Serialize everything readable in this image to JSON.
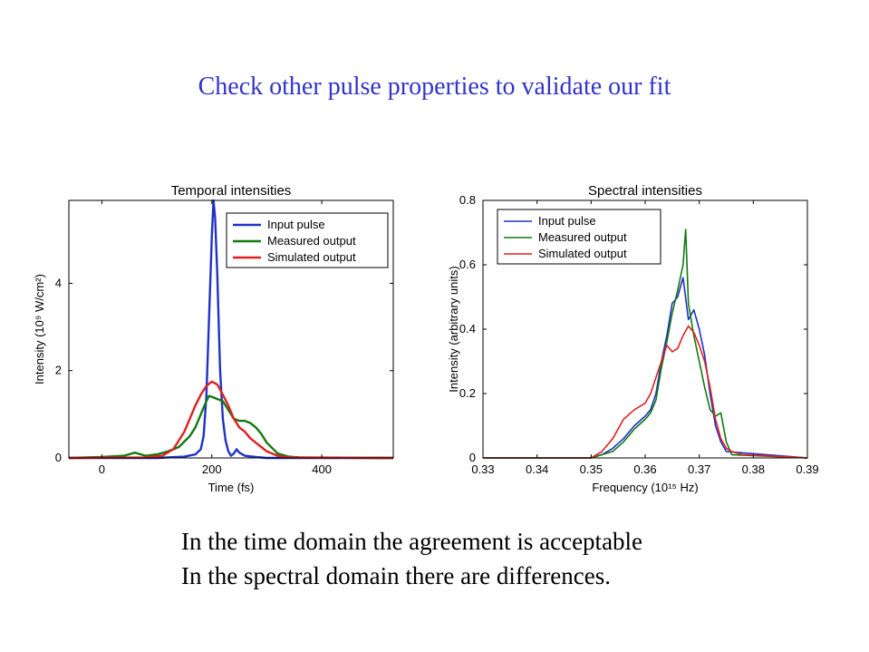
{
  "slide": {
    "title": "Check other pulse properties to validate our fit",
    "conclusions": [
      "In the time domain the agreement is acceptable",
      "In the spectral domain there are differences."
    ]
  },
  "colors": {
    "title": "#3333cc",
    "input": "#1f32c8",
    "measured": "#117a11",
    "simulated": "#e02020"
  },
  "chart_data": [
    {
      "type": "line",
      "title": "Temporal intensities",
      "xlabel": "Time (fs)",
      "ylabel": "Intensity (10⁹ W/cm²)",
      "xlim": [
        -60,
        530
      ],
      "ylim": [
        0,
        5.9
      ],
      "xticks": [
        0,
        200,
        400
      ],
      "yticks": [
        0,
        2,
        4
      ],
      "grid": false,
      "legend_position": "top-right",
      "series": [
        {
          "name": "Input pulse",
          "color": "#1f32c8",
          "x": [
            -60,
            100,
            150,
            170,
            180,
            185,
            190,
            195,
            200,
            203,
            206,
            210,
            215,
            220,
            225,
            230,
            235,
            240,
            245,
            250,
            260,
            280,
            300,
            530
          ],
          "y": [
            0,
            0,
            0.03,
            0.08,
            0.2,
            0.5,
            1.4,
            3.2,
            5.1,
            5.9,
            5.5,
            4.2,
            2.0,
            0.9,
            0.4,
            0.15,
            0.05,
            0.1,
            0.2,
            0.12,
            0.05,
            0.02,
            0,
            0
          ]
        },
        {
          "name": "Measured output",
          "color": "#117a11",
          "x": [
            -60,
            0,
            40,
            60,
            80,
            100,
            120,
            140,
            160,
            170,
            180,
            190,
            195,
            200,
            210,
            220,
            230,
            240,
            250,
            260,
            270,
            280,
            290,
            300,
            320,
            340,
            360,
            530
          ],
          "y": [
            0,
            0.02,
            0.05,
            0.12,
            0.05,
            0.08,
            0.15,
            0.25,
            0.5,
            0.7,
            1.0,
            1.3,
            1.42,
            1.4,
            1.35,
            1.3,
            1.1,
            0.9,
            0.85,
            0.85,
            0.8,
            0.7,
            0.55,
            0.35,
            0.1,
            0.03,
            0.01,
            0
          ]
        },
        {
          "name": "Simulated output",
          "color": "#e02020",
          "x": [
            -60,
            80,
            110,
            130,
            150,
            170,
            180,
            190,
            200,
            210,
            220,
            230,
            240,
            250,
            260,
            270,
            280,
            290,
            300,
            320,
            340,
            530
          ],
          "y": [
            0,
            0.01,
            0.05,
            0.2,
            0.6,
            1.2,
            1.45,
            1.65,
            1.75,
            1.68,
            1.45,
            1.2,
            0.9,
            0.7,
            0.6,
            0.45,
            0.35,
            0.25,
            0.15,
            0.05,
            0.01,
            0
          ]
        }
      ]
    },
    {
      "type": "line",
      "title": "Spectral intensities",
      "xlabel": "Frequency (10¹⁵ Hz)",
      "ylabel": "Intensity (arbitrary units)",
      "xlim": [
        0.33,
        0.39
      ],
      "ylim": [
        0,
        0.8
      ],
      "xticks": [
        0.33,
        0.34,
        0.35,
        0.36,
        0.37,
        0.38,
        0.39
      ],
      "yticks": [
        0,
        0.2,
        0.4,
        0.6,
        0.8
      ],
      "grid": false,
      "legend_position": "top-left",
      "series": [
        {
          "name": "Input pulse",
          "color": "#1f32c8",
          "x": [
            0.33,
            0.35,
            0.352,
            0.354,
            0.356,
            0.358,
            0.36,
            0.361,
            0.362,
            0.363,
            0.364,
            0.365,
            0.366,
            0.367,
            0.368,
            0.369,
            0.37,
            0.371,
            0.372,
            0.373,
            0.374,
            0.375,
            0.39
          ],
          "y": [
            0,
            0,
            0.01,
            0.03,
            0.06,
            0.1,
            0.13,
            0.15,
            0.2,
            0.3,
            0.38,
            0.48,
            0.5,
            0.56,
            0.43,
            0.46,
            0.4,
            0.32,
            0.2,
            0.1,
            0.05,
            0.02,
            0
          ]
        },
        {
          "name": "Measured output",
          "color": "#117a11",
          "x": [
            0.33,
            0.35,
            0.352,
            0.354,
            0.356,
            0.358,
            0.36,
            0.361,
            0.362,
            0.363,
            0.364,
            0.365,
            0.366,
            0.367,
            0.3675,
            0.368,
            0.369,
            0.37,
            0.371,
            0.372,
            0.373,
            0.374,
            0.375,
            0.376,
            0.39
          ],
          "y": [
            0,
            0,
            0.01,
            0.02,
            0.05,
            0.09,
            0.12,
            0.14,
            0.18,
            0.28,
            0.36,
            0.45,
            0.52,
            0.6,
            0.71,
            0.48,
            0.38,
            0.3,
            0.22,
            0.15,
            0.13,
            0.14,
            0.05,
            0.01,
            0
          ]
        },
        {
          "name": "Simulated output",
          "color": "#e02020",
          "x": [
            0.33,
            0.35,
            0.352,
            0.354,
            0.356,
            0.358,
            0.36,
            0.361,
            0.362,
            0.363,
            0.364,
            0.365,
            0.366,
            0.367,
            0.368,
            0.369,
            0.37,
            0.371,
            0.372,
            0.373,
            0.374,
            0.375,
            0.376,
            0.378,
            0.39
          ],
          "y": [
            0,
            0,
            0.02,
            0.06,
            0.12,
            0.15,
            0.17,
            0.2,
            0.25,
            0.3,
            0.35,
            0.33,
            0.34,
            0.38,
            0.41,
            0.39,
            0.35,
            0.3,
            0.22,
            0.12,
            0.06,
            0.03,
            0.02,
            0.01,
            0
          ]
        }
      ]
    }
  ]
}
